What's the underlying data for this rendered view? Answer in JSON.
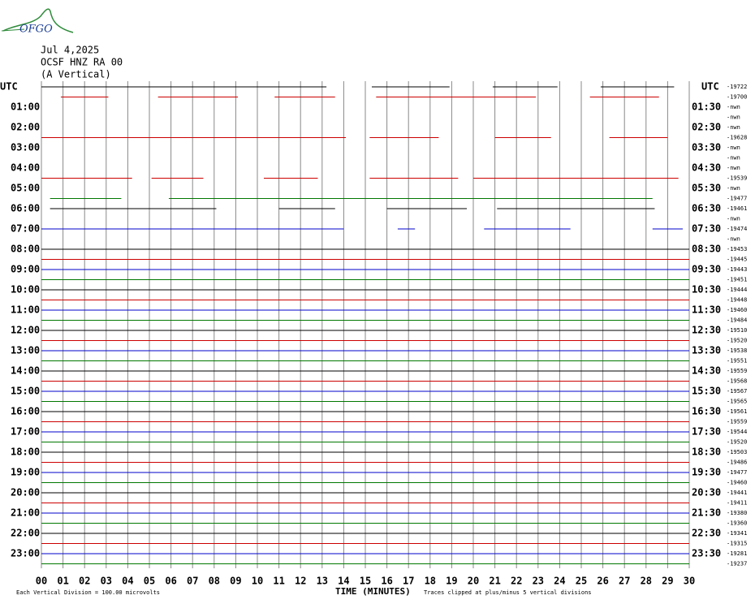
{
  "header": {
    "logo": "OFGO",
    "date": "Jul 4,2025",
    "station": "OCSF HNZ RA 00",
    "component": "(A Vertical)"
  },
  "left_labels": [
    "UTC",
    "01:00",
    "02:00",
    "03:00",
    "04:00",
    "05:00",
    "06:00",
    "07:00",
    "08:00",
    "09:00",
    "10:00",
    "11:00",
    "12:00",
    "13:00",
    "14:00",
    "15:00",
    "16:00",
    "17:00",
    "18:00",
    "19:00",
    "20:00",
    "21:00",
    "22:00",
    "23:00"
  ],
  "right_labels": [
    "UTC",
    "01:30",
    "02:30",
    "03:30",
    "04:30",
    "05:30",
    "06:30",
    "07:30",
    "08:30",
    "09:30",
    "10:30",
    "11:30",
    "12:30",
    "13:30",
    "14:30",
    "15:30",
    "16:30",
    "17:30",
    "18:30",
    "19:30",
    "20:30",
    "21:30",
    "22:30",
    "23:30"
  ],
  "right_values": [
    "-19722",
    "-19700",
    "-nwn",
    "-nwn",
    "-nwn",
    "-19628",
    "-nwn",
    "-nwn",
    "-nwn",
    "-19539",
    "-nwn",
    "-19477",
    "-19461",
    "-nwn",
    "-19474",
    "-nwn",
    "-19453",
    "-19445",
    "-19443",
    "-19451",
    "-19444",
    "-19448",
    "-19460",
    "-19484",
    "-19510",
    "-19520",
    "-19538",
    "-19551",
    "-19559",
    "-19568",
    "-19567",
    "-19565",
    "-19561",
    "-19559",
    "-19544",
    "-19520",
    "-19503",
    "-19486",
    "-19477",
    "-19460",
    "-19441",
    "-19411",
    "-19380",
    "-19360",
    "-19341",
    "-19315",
    "-19281",
    "-19237"
  ],
  "x_labels": [
    "00",
    "01",
    "02",
    "03",
    "04",
    "05",
    "06",
    "07",
    "08",
    "09",
    "10",
    "11",
    "12",
    "13",
    "14",
    "15",
    "16",
    "17",
    "18",
    "19",
    "20",
    "21",
    "22",
    "23",
    "24",
    "25",
    "26",
    "27",
    "28",
    "29",
    "30"
  ],
  "footer": {
    "division": "Each Vertical Division =  100.00 microvolts",
    "axis_title": "TIME (MINUTES)",
    "clip_note": "Traces clipped at plus/minus 5 vertical divisions"
  }
}
